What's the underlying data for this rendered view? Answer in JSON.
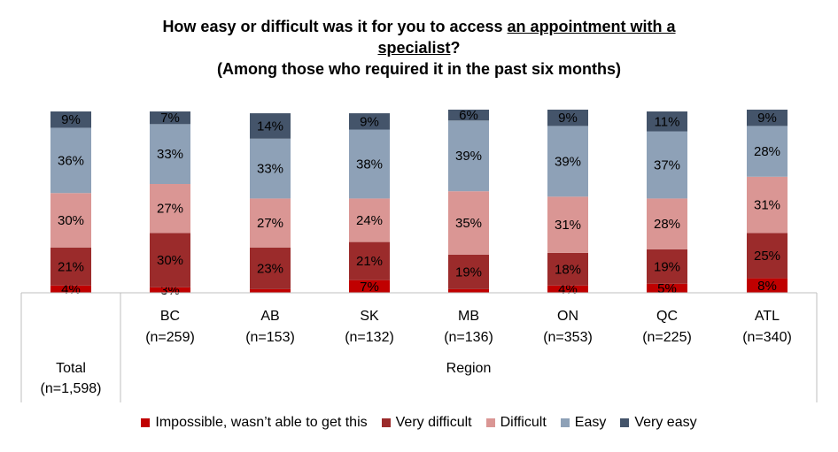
{
  "title": {
    "line1_prefix": "How easy or difficult was it for you to access ",
    "line1_underlined": "an appointment with a",
    "line2_underlined": "specialist",
    "line2_suffix": "?",
    "line3": "(Among those who required it in the past six months)"
  },
  "chart_data": {
    "type": "bar",
    "stacked": true,
    "orientation": "vertical",
    "categories": [
      "Total (n=1,598)",
      "BC (n=259)",
      "AB (n=153)",
      "SK (n=132)",
      "MB (n=136)",
      "ON (n=353)",
      "QC (n=225)",
      "ATL (n=340)"
    ],
    "category_labels": [
      {
        "name": "",
        "n": ""
      },
      {
        "name": "BC",
        "n": "(n=259)"
      },
      {
        "name": "AB",
        "n": "(n=153)"
      },
      {
        "name": "SK",
        "n": "(n=132)"
      },
      {
        "name": "MB",
        "n": "(n=136)"
      },
      {
        "name": "ON",
        "n": "(n=353)"
      },
      {
        "name": "QC",
        "n": "(n=225)"
      },
      {
        "name": "ATL",
        "n": "(n=340)"
      }
    ],
    "total_label": {
      "name": "Total",
      "n": "(n=1,598)"
    },
    "group_label": "Region",
    "series": [
      {
        "name": "Impossible, wasn’t able to get this",
        "color": "#C00000",
        "values": [
          4,
          3,
          2,
          7,
          2,
          4,
          5,
          8
        ],
        "labels": [
          "4%",
          "3%",
          "",
          "7%",
          "",
          "4%",
          "5%",
          "8%"
        ]
      },
      {
        "name": "Very difficult",
        "color": "#9B2B2B",
        "values": [
          21,
          30,
          23,
          21,
          19,
          18,
          19,
          25
        ],
        "labels": [
          "21%",
          "30%",
          "23%",
          "21%",
          "19%",
          "18%",
          "19%",
          "25%"
        ]
      },
      {
        "name": "Difficult",
        "color": "#DA9694",
        "values": [
          30,
          27,
          27,
          24,
          35,
          31,
          28,
          31
        ],
        "labels": [
          "30%",
          "27%",
          "27%",
          "24%",
          "35%",
          "31%",
          "28%",
          "31%"
        ]
      },
      {
        "name": "Easy",
        "color": "#8EA1B7",
        "values": [
          36,
          33,
          33,
          38,
          39,
          39,
          37,
          28
        ],
        "labels": [
          "36%",
          "33%",
          "33%",
          "38%",
          "39%",
          "39%",
          "37%",
          "28%"
        ]
      },
      {
        "name": "Very easy",
        "color": "#44546A",
        "values": [
          9,
          7,
          14,
          9,
          6,
          9,
          11,
          9
        ],
        "labels": [
          "9%",
          "7%",
          "14%",
          "9%",
          "6%",
          "9%",
          "11%",
          "9%"
        ]
      }
    ],
    "ylim": [
      0,
      100
    ],
    "legend_position": "bottom",
    "grid": false
  }
}
